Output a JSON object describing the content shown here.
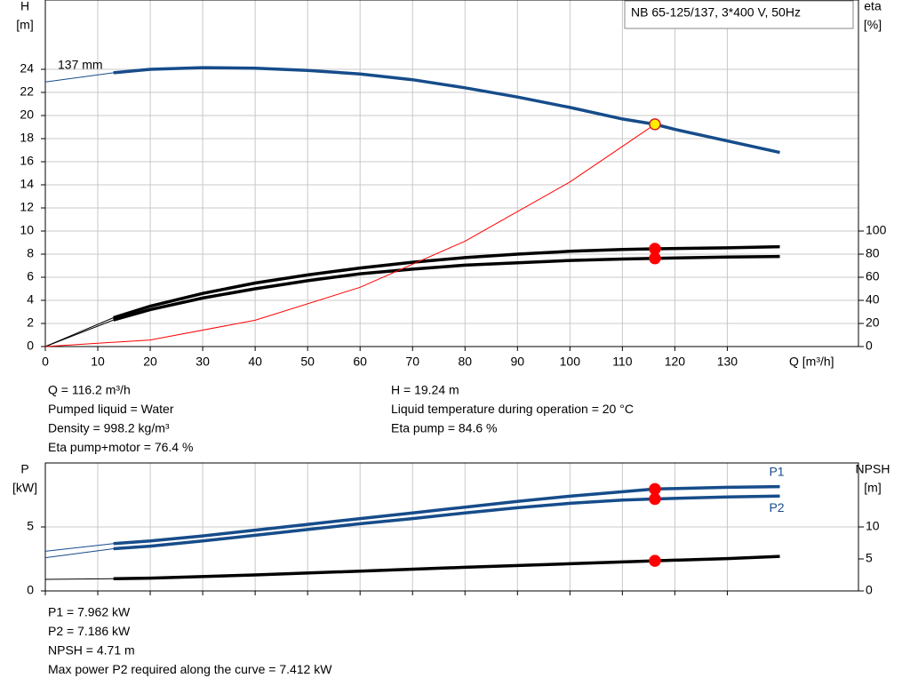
{
  "chart_data": [
    {
      "type": "line",
      "title": "NB 65-125/137, 3*400 V, 50Hz",
      "annotation": "137 mm",
      "x_label": "Q [m³/h]",
      "y_label": "H",
      "y_unit": "[m]",
      "y2_label": "eta",
      "y2_unit": "[%]",
      "xlim": [
        0,
        155
      ],
      "xticks": [
        0,
        10,
        20,
        30,
        40,
        50,
        60,
        70,
        80,
        90,
        100,
        110,
        120,
        130
      ],
      "ylim": [
        0,
        30
      ],
      "yticks": [
        0,
        2,
        4,
        6,
        8,
        10,
        12,
        14,
        16,
        18,
        20,
        22,
        24
      ],
      "y2lim": [
        0,
        300
      ],
      "y2ticks": [
        0,
        20,
        40,
        60,
        80,
        100
      ],
      "grid": true,
      "series": [
        {
          "color": "#164c8a",
          "axis": "y",
          "x": [
            0,
            13,
            20,
            30,
            40,
            50,
            60,
            70,
            80,
            90,
            100,
            110,
            116.2,
            120,
            130,
            140
          ],
          "values": [
            22.9,
            23.7,
            24.0,
            24.15,
            24.1,
            23.9,
            23.6,
            23.1,
            22.4,
            21.6,
            20.7,
            19.7,
            19.24,
            18.8,
            17.8,
            16.8
          ]
        },
        {
          "color": "#000000",
          "axis": "y2",
          "x": [
            0,
            13,
            20,
            30,
            40,
            50,
            60,
            70,
            80,
            90,
            100,
            110,
            116.2,
            130,
            140
          ],
          "values": [
            0,
            25,
            35,
            46,
            55,
            62,
            68,
            73,
            77,
            80,
            82.5,
            84,
            84.6,
            85.5,
            86.5
          ]
        },
        {
          "color": "#000000",
          "axis": "y2",
          "x": [
            0,
            13,
            20,
            30,
            40,
            50,
            60,
            70,
            80,
            90,
            100,
            110,
            116.2,
            130,
            140
          ],
          "values": [
            0,
            23,
            32,
            42,
            50,
            57,
            63,
            67,
            70.5,
            72.5,
            74.5,
            75.8,
            76.4,
            77.5,
            78
          ]
        },
        {
          "color": "#ff0000",
          "axis": "y",
          "thin": true,
          "x": [
            0,
            20,
            40,
            60,
            80,
            100,
            116.2
          ],
          "values": [
            0,
            0.57,
            2.28,
            5.13,
            9.12,
            14.25,
            19.24
          ]
        }
      ],
      "points": [
        {
          "x": 116.2,
          "y": 19.24,
          "axis": "y",
          "color": "#ffee00"
        },
        {
          "x": 116.2,
          "y": 84.6,
          "axis": "y2",
          "color": "#ff0000"
        },
        {
          "x": 116.2,
          "y": 76.4,
          "axis": "y2",
          "color": "#ff0000"
        }
      ]
    },
    {
      "type": "line",
      "y_label": "P",
      "y_unit": "[kW]",
      "y2_label": "NPSH",
      "y2_unit": "[m]",
      "xlim": [
        0,
        155
      ],
      "xticks": [
        0,
        10,
        20,
        30,
        40,
        50,
        60,
        70,
        80,
        90,
        100,
        110,
        120,
        130
      ],
      "ylim": [
        0,
        10
      ],
      "yticks": [
        0,
        5
      ],
      "y2lim": [
        0,
        20
      ],
      "y2ticks": [
        0,
        5,
        10
      ],
      "grid": true,
      "series": [
        {
          "name": "P1",
          "color": "#164c8a",
          "axis": "y",
          "x": [
            0,
            13,
            20,
            30,
            40,
            50,
            60,
            70,
            80,
            90,
            100,
            110,
            116.2,
            130,
            140
          ],
          "values": [
            3.1,
            3.7,
            3.9,
            4.3,
            4.75,
            5.2,
            5.65,
            6.1,
            6.55,
            7.0,
            7.4,
            7.75,
            7.962,
            8.1,
            8.15
          ]
        },
        {
          "name": "P2",
          "color": "#164c8a",
          "axis": "y",
          "x": [
            0,
            13,
            20,
            30,
            40,
            50,
            60,
            70,
            80,
            90,
            100,
            110,
            116.2,
            130,
            140
          ],
          "values": [
            2.6,
            3.3,
            3.5,
            3.9,
            4.35,
            4.8,
            5.25,
            5.65,
            6.1,
            6.5,
            6.85,
            7.1,
            7.186,
            7.35,
            7.42
          ]
        },
        {
          "color": "#000000",
          "axis": "y2",
          "x": [
            0,
            13,
            20,
            40,
            60,
            80,
            100,
            116.2,
            130,
            140
          ],
          "values": [
            1.8,
            1.9,
            2.0,
            2.5,
            3.1,
            3.7,
            4.25,
            4.71,
            5.05,
            5.4
          ]
        }
      ],
      "points": [
        {
          "x": 116.2,
          "y": 7.962,
          "axis": "y",
          "color": "#ff0000"
        },
        {
          "x": 116.2,
          "y": 7.186,
          "axis": "y",
          "color": "#ff0000"
        },
        {
          "x": 116.2,
          "y": 4.71,
          "axis": "y2",
          "color": "#ff0000"
        }
      ]
    }
  ],
  "info": {
    "left": [
      "Q = 116.2 m³/h",
      "Pumped liquid = Water",
      "Density = 998.2 kg/m³",
      "Eta pump+motor = 76.4 %"
    ],
    "right": [
      "H = 19.24 m",
      "Liquid temperature during operation = 20 °C",
      "Eta pump = 84.6 %"
    ],
    "power": [
      "P1 = 7.962 kW",
      "P2 = 7.186 kW",
      "NPSH = 4.71 m",
      "Max power P2 required along the curve = 7.412 kW"
    ]
  }
}
